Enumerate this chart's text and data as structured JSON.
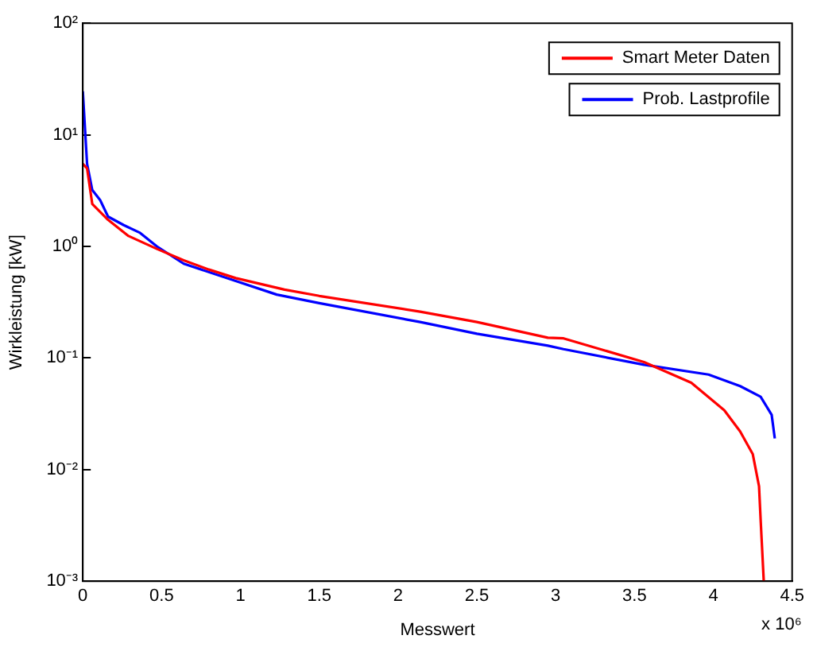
{
  "chart_data": {
    "type": "line",
    "xlabel": "Messwert",
    "ylabel": "Wirkleistung [kW]",
    "annotations": [
      "x 10⁶"
    ],
    "log": "y",
    "grid": false,
    "legend": "top right",
    "marker": "none",
    "line_style": "solid",
    "xlim": [
      0,
      4.5
    ],
    "xticks": [
      0,
      0.5,
      1,
      1.5,
      2,
      2.5,
      3,
      3.5,
      4,
      4.5
    ],
    "ylim": [
      0.001,
      100
    ],
    "yticks": [
      {
        "value": 0.001,
        "label": "10⁻³"
      },
      {
        "value": 0.01,
        "label": "10⁻²"
      },
      {
        "value": 0.1,
        "label": "10⁻¹"
      },
      {
        "value": 1,
        "label": "10⁰"
      },
      {
        "value": 10,
        "label": "10¹"
      },
      {
        "value": 100,
        "label": "10²"
      }
    ],
    "series": [
      {
        "name": "Smart Meter Daten",
        "color": "#ff0000",
        "x": [
          0,
          0.027,
          0.06,
          0.16,
          0.29,
          0.47,
          0.64,
          0.8,
          0.97,
          1.28,
          1.5,
          2.14,
          2.5,
          2.95,
          3.05,
          3.56,
          3.86,
          4.07,
          4.17,
          4.25,
          4.29,
          4.3,
          4.31,
          4.32
        ],
        "values": [
          5.5,
          5,
          2.4,
          1.73,
          1.24,
          0.95,
          0.75,
          0.62,
          0.52,
          0.41,
          0.36,
          0.26,
          0.21,
          0.152,
          0.15,
          0.092,
          0.06,
          0.034,
          0.022,
          0.0138,
          0.0071,
          0.0036,
          0.0019,
          0.001
        ]
      },
      {
        "name": "Prob. Lastprofile",
        "color": "#0000ff",
        "x": [
          0,
          0.027,
          0.06,
          0.11,
          0.16,
          0.26,
          0.36,
          0.47,
          0.64,
          0.97,
          1.23,
          1.5,
          2.14,
          2.5,
          2.95,
          3.05,
          3.56,
          3.97,
          4.17,
          4.3,
          4.37,
          4.39
        ],
        "values": [
          24.5,
          5.5,
          3.2,
          2.6,
          1.85,
          1.55,
          1.33,
          1,
          0.7,
          0.49,
          0.37,
          0.31,
          0.21,
          0.165,
          0.129,
          0.12,
          0.087,
          0.071,
          0.056,
          0.045,
          0.031,
          0.019
        ]
      }
    ]
  }
}
